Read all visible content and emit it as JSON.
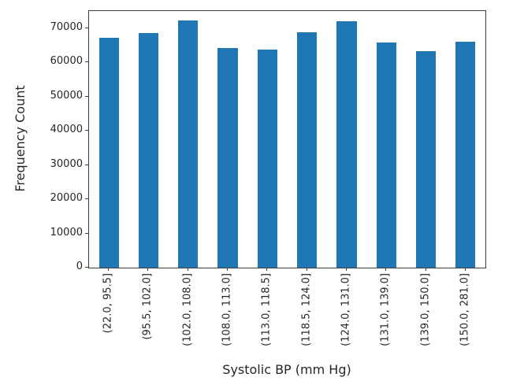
{
  "chart_data": {
    "type": "bar",
    "title": "",
    "xlabel": "Systolic BP (mm Hg)",
    "ylabel": "Frequency Count",
    "categories": [
      "(22.0, 95.5]",
      "(95.5, 102.0]",
      "(102.0, 108.0]",
      "(108.0, 113.0]",
      "(113.0, 118.5]",
      "(118.5, 124.0]",
      "(124.0, 131.0]",
      "(131.0, 139.0]",
      "(139.0, 150.0]",
      "(150.0, 281.0]"
    ],
    "values": [
      67200,
      68600,
      72200,
      64300,
      63700,
      68900,
      71900,
      65800,
      63200,
      66000
    ],
    "y_ticks": [
      0,
      10000,
      20000,
      30000,
      40000,
      50000,
      60000,
      70000
    ],
    "ylim": [
      0,
      75000
    ],
    "bar_color": "#1f77b4",
    "bar_relative_width": 0.5,
    "grid": false,
    "legend": "none"
  }
}
